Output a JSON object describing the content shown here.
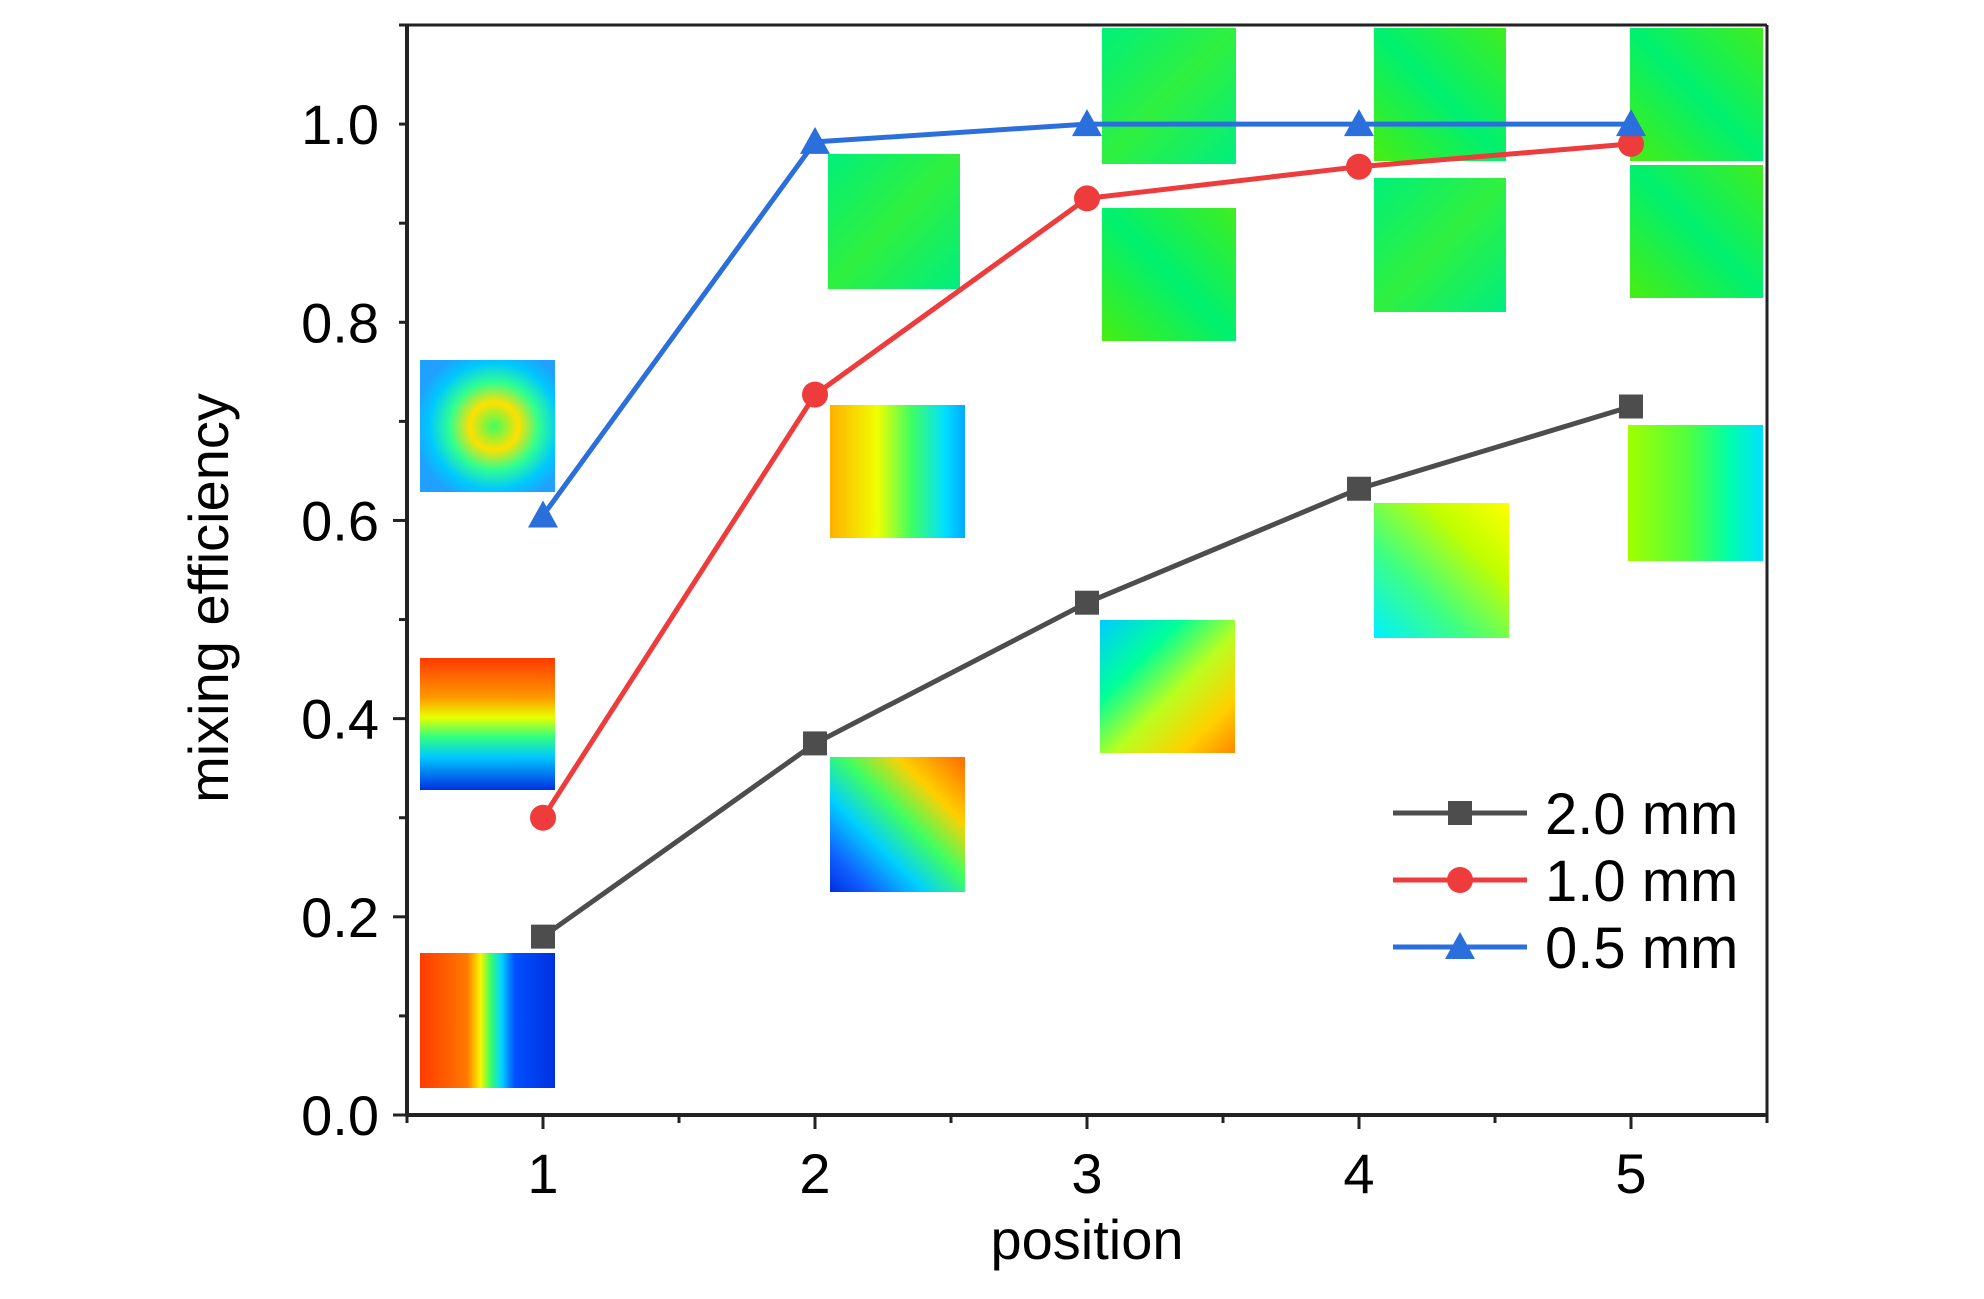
{
  "chart_data": {
    "type": "line",
    "xlabel": "position",
    "ylabel": "mixing efficiency",
    "xlim": [
      0.5,
      5.5
    ],
    "ylim": [
      0.0,
      1.1
    ],
    "x_ticks": [
      "1",
      "2",
      "3",
      "4",
      "5"
    ],
    "y_ticks": [
      "0.0",
      "0.2",
      "0.4",
      "0.6",
      "0.8",
      "1.0"
    ],
    "grid": false,
    "legend_position": "bottom-right",
    "x": [
      1,
      2,
      3,
      4,
      5
    ],
    "series": [
      {
        "name": "2.0 mm",
        "values": [
          0.18,
          0.375,
          0.517,
          0.632,
          0.715
        ],
        "color": "#4d4d4d",
        "marker": "square"
      },
      {
        "name": "1.0 mm",
        "values": [
          0.3,
          0.727,
          0.925,
          0.957,
          0.98
        ],
        "color": "#ee3b3b",
        "marker": "circle"
      },
      {
        "name": "0.5 mm",
        "values": [
          0.605,
          0.982,
          1.0,
          1.0,
          1.0
        ],
        "color": "#2a6fdb",
        "marker": "triangle"
      }
    ],
    "annotations": "cross-section concentration contour images beside each data point"
  }
}
